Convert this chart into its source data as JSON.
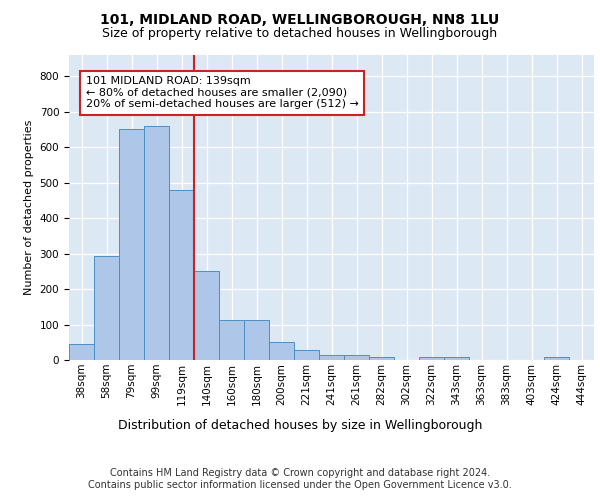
{
  "title1": "101, MIDLAND ROAD, WELLINGBOROUGH, NN8 1LU",
  "title2": "Size of property relative to detached houses in Wellingborough",
  "xlabel": "Distribution of detached houses by size in Wellingborough",
  "ylabel": "Number of detached properties",
  "categories": [
    "38sqm",
    "58sqm",
    "79sqm",
    "99sqm",
    "119sqm",
    "140sqm",
    "160sqm",
    "180sqm",
    "200sqm",
    "221sqm",
    "241sqm",
    "261sqm",
    "282sqm",
    "302sqm",
    "322sqm",
    "343sqm",
    "363sqm",
    "383sqm",
    "403sqm",
    "424sqm",
    "444sqm"
  ],
  "values": [
    45,
    293,
    652,
    661,
    478,
    252,
    113,
    113,
    50,
    27,
    15,
    15,
    8,
    0,
    8,
    8,
    0,
    0,
    0,
    8,
    0
  ],
  "bar_color": "#aec6e8",
  "bar_edge_color": "#4a90c4",
  "annotation_text": "101 MIDLAND ROAD: 139sqm\n← 80% of detached houses are smaller (2,090)\n20% of semi-detached houses are larger (512) →",
  "annotation_box_color": "#ffffff",
  "annotation_box_edge_color": "#cc2222",
  "footnote1": "Contains HM Land Registry data © Crown copyright and database right 2024.",
  "footnote2": "Contains public sector information licensed under the Open Government Licence v3.0.",
  "ylim": [
    0,
    860
  ],
  "background_color": "#dde8f5",
  "grid_color": "#ffffff",
  "title1_fontsize": 10,
  "title2_fontsize": 9,
  "xlabel_fontsize": 9,
  "ylabel_fontsize": 8,
  "tick_fontsize": 7.5,
  "annotation_fontsize": 8,
  "footnote_fontsize": 7
}
